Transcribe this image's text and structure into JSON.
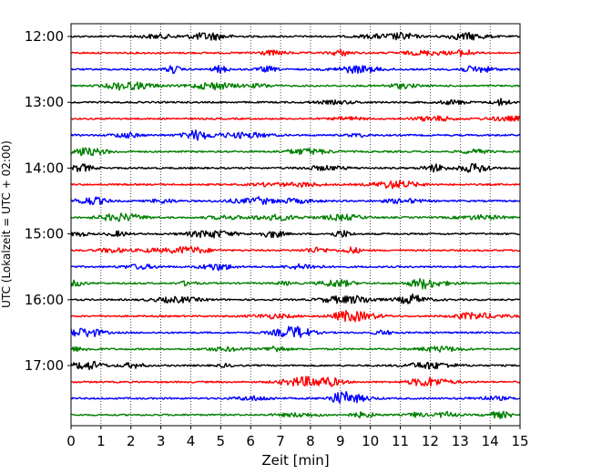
{
  "chart_data": {
    "type": "line",
    "title": "",
    "xlabel": "Zeit  [min]",
    "ylabel": "UTC (Lokalzeit = UTC + 02:00)",
    "xlim": [
      0,
      15
    ],
    "x_ticks": [
      "0",
      "1",
      "2",
      "3",
      "4",
      "5",
      "6",
      "7",
      "8",
      "9",
      "10",
      "11",
      "12",
      "13",
      "14",
      "15"
    ],
    "y_ticks": [
      "12:00",
      "13:00",
      "14:00",
      "15:00",
      "16:00",
      "17:00"
    ],
    "grid": "vertical dotted",
    "trace_interval_min": 15,
    "first_trace": "12:00",
    "trace_count": 24,
    "color_cycle": [
      "#000000",
      "#ff0000",
      "#0000ff",
      "#008000"
    ]
  }
}
